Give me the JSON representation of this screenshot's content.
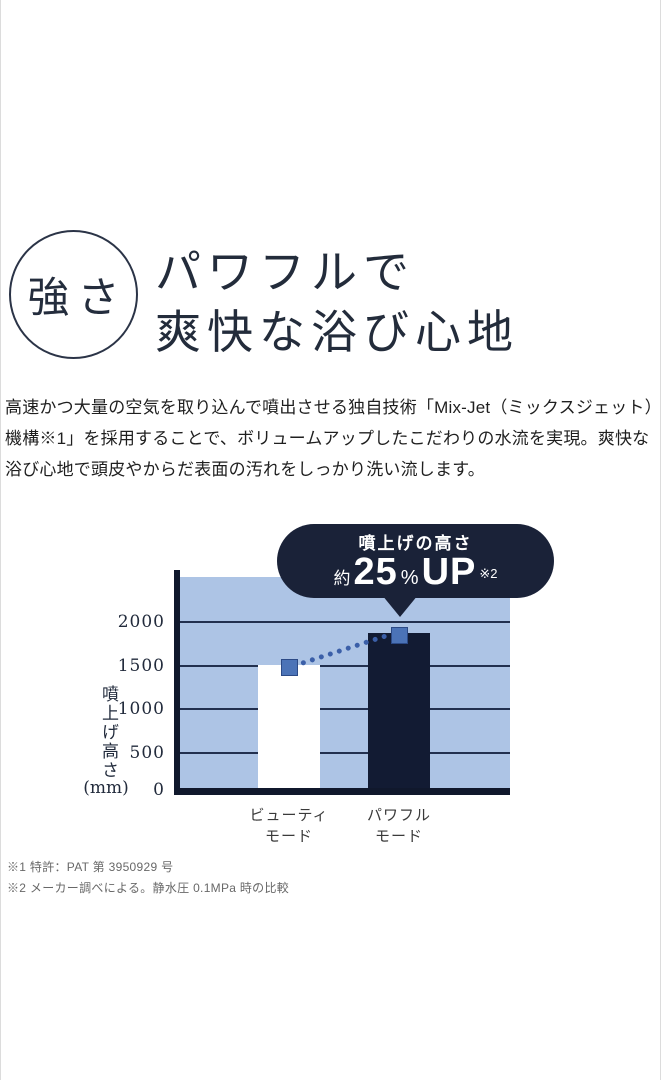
{
  "badge": {
    "label": "強さ"
  },
  "heading": {
    "line1": "パワフルで",
    "line2": "爽快な浴び心地"
  },
  "paragraph": {
    "lines": [
      "高速かつ大量の空気を取り込んで噴出させる独自技術「Mix-Jet（ミックスジェット）",
      "機構※1」を採用することで、ボリュームアップしたこだわりの水流を実現。爽快な",
      "浴び心地で頭皮やからだ表面の汚れをしっかり洗い流します。"
    ]
  },
  "chart_data": {
    "type": "bar",
    "categories": [
      [
        "ビューティ",
        "モード"
      ],
      [
        "パワフル",
        "モード"
      ]
    ],
    "values": [
      1450,
      1850
    ],
    "ylabel": "噴上げ高さ",
    "ylabel_unit": "(mm)",
    "yticks_display": [
      "2000",
      "1500",
      "1000",
      "500",
      "0"
    ],
    "yticks": [
      0,
      500,
      1000,
      1500,
      2000
    ],
    "ylim": [
      0,
      2450
    ],
    "grid": true,
    "legend": "none",
    "annotation": {
      "line1": "噴上げの高さ",
      "approx": "約",
      "value": "25",
      "percent": "%",
      "up": "UP",
      "ref": "※2"
    },
    "colors": {
      "plot_bg": "#adc4e5",
      "gridline": "#22304f",
      "axis": "#10182c",
      "bar_beauty": "#ffffff",
      "bar_powerful": "#121b33",
      "marker": "#4b73b7",
      "dotted_line": "#3b5fa8",
      "bubble_bg": "#1a2238",
      "bubble_text": "#ffffff"
    }
  },
  "footnotes": {
    "line1": "※1 特許：PAT 第 3950929 号",
    "line2": "※2 メーカー調べによる。静水圧 0.1MPa 時の比較"
  }
}
